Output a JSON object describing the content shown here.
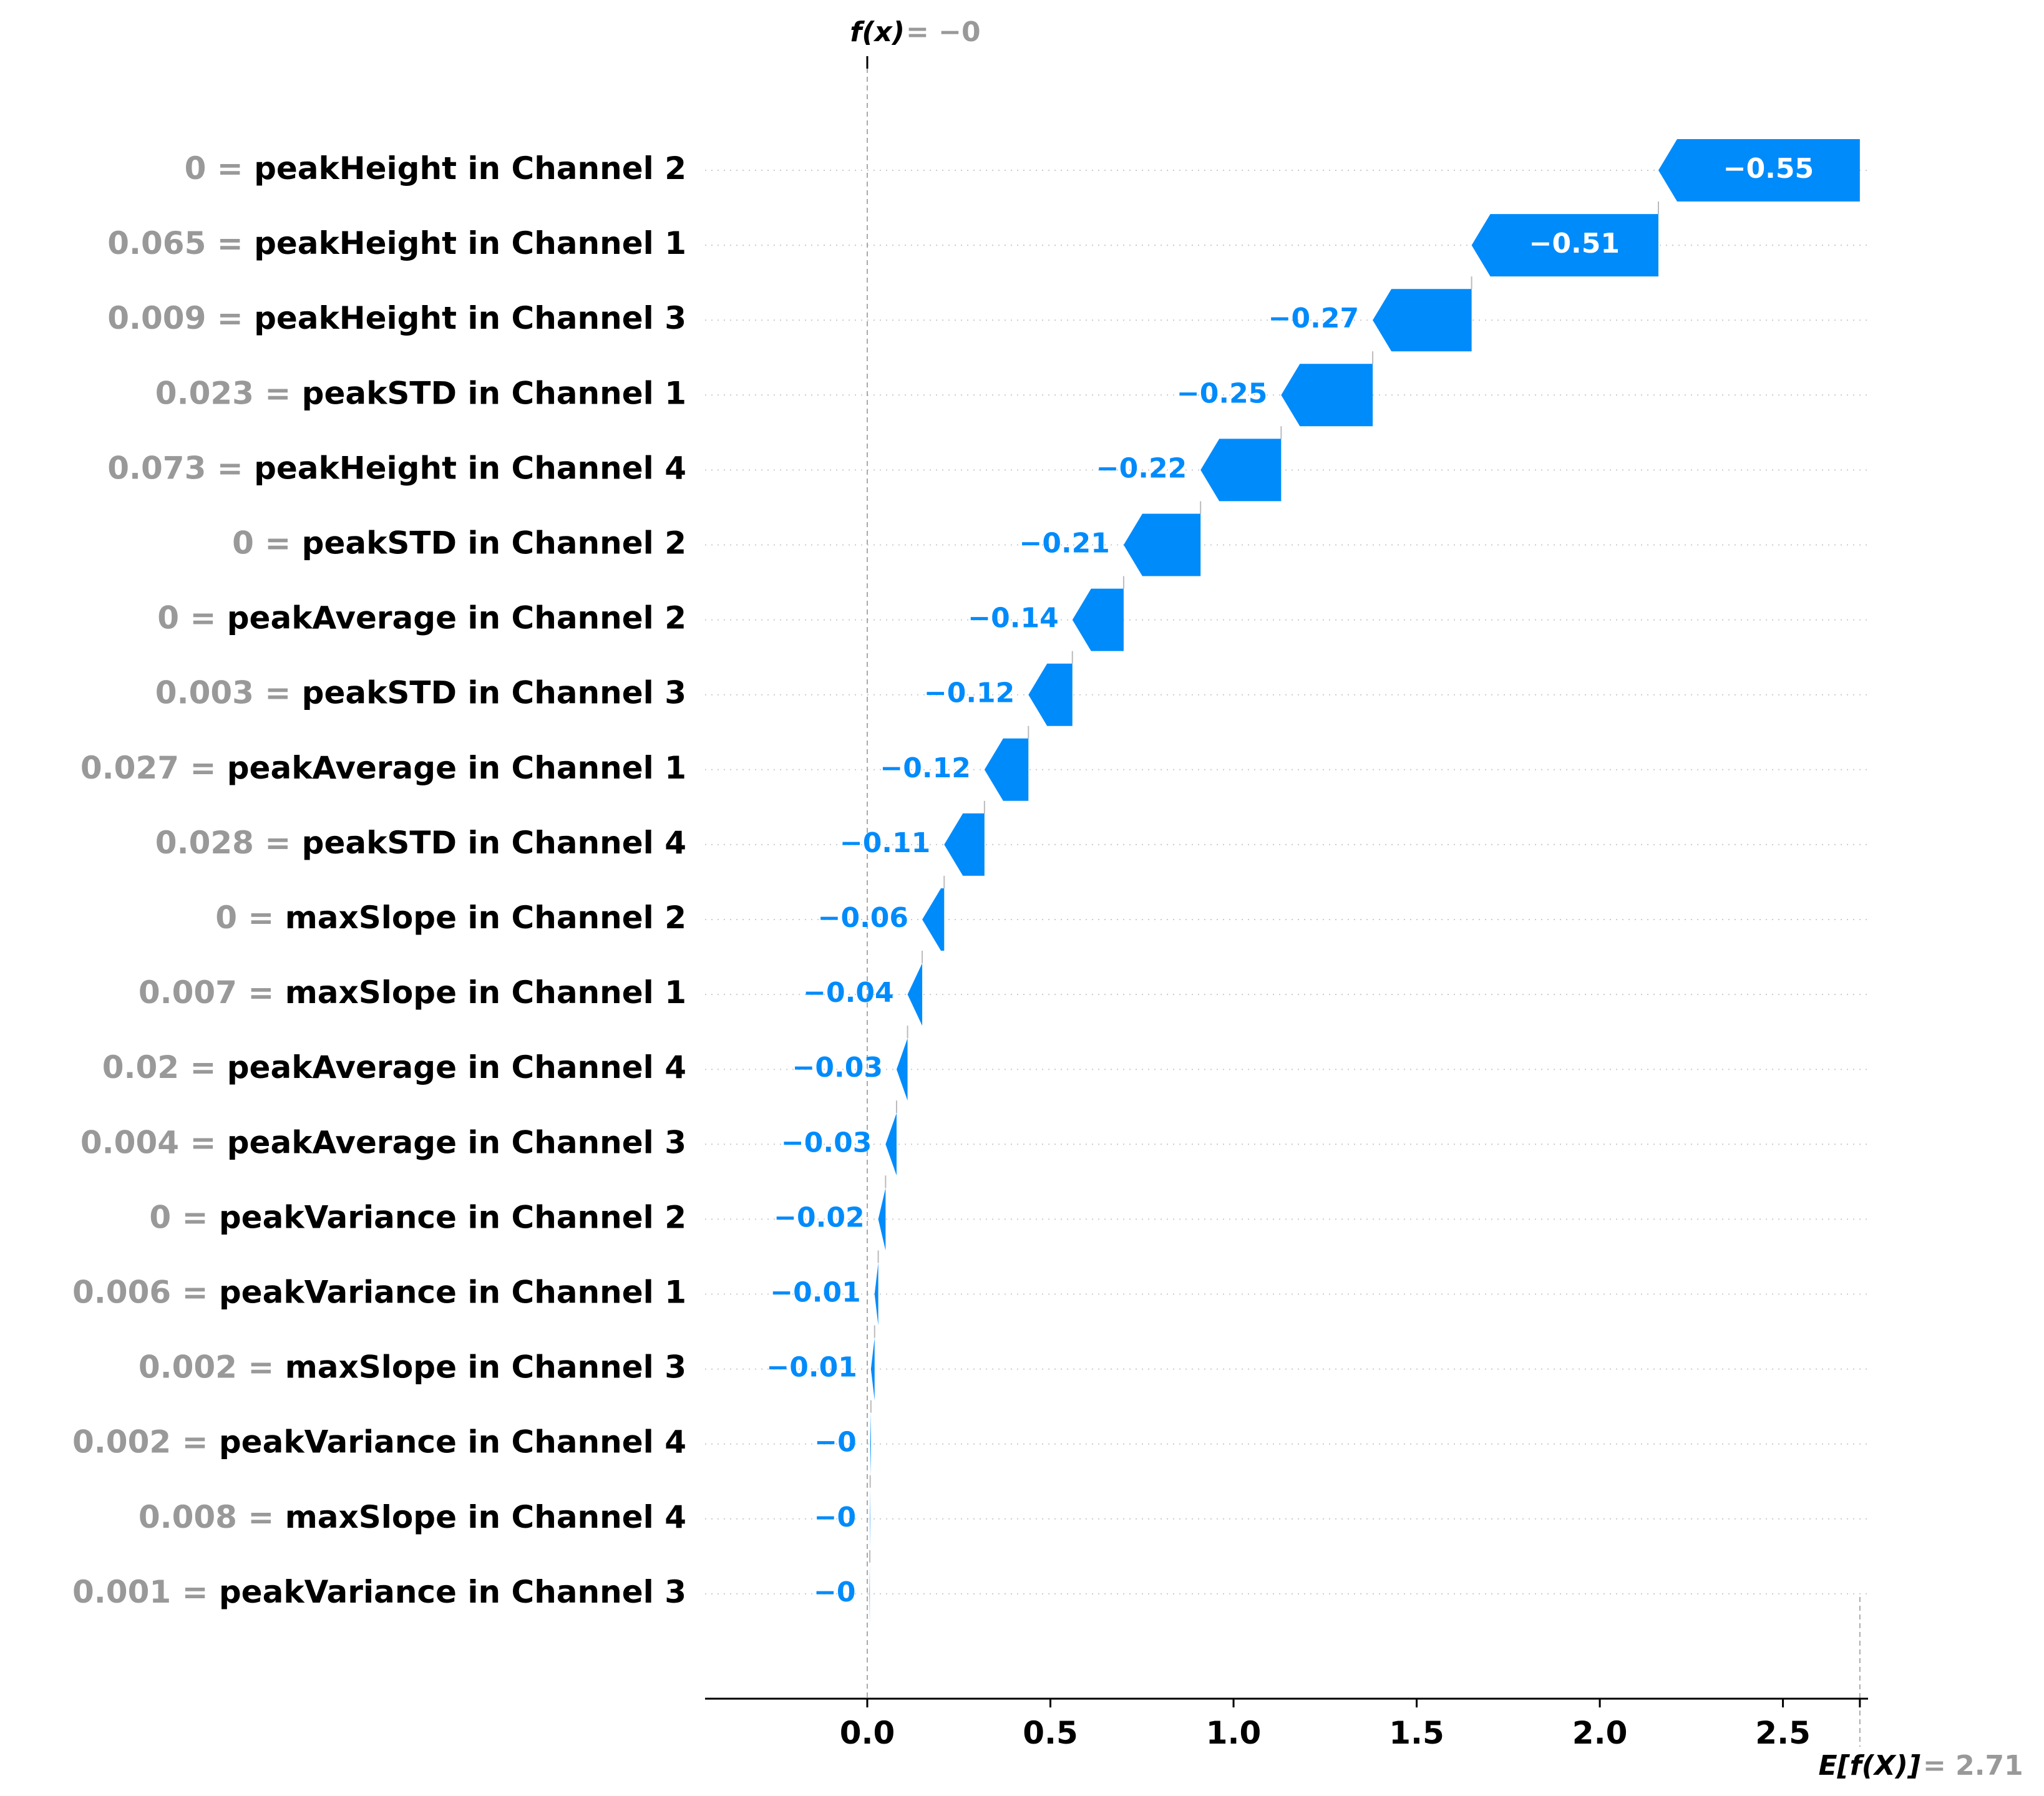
{
  "chart_data": {
    "type": "waterfall",
    "xlim": [
      -0.45,
      2.73
    ],
    "ticks": [
      "0.0",
      "0.5",
      "1.0",
      "1.5",
      "2.0",
      "2.5"
    ],
    "tick_values": [
      0.0,
      0.5,
      1.0,
      1.5,
      2.0,
      2.5
    ],
    "base_value": 2.71,
    "output_value": 0,
    "fx_label": "f(x)",
    "fx_value_text": "= −0",
    "efx_label": "E[f(X)]",
    "efx_value_text": "= 2.71",
    "colors": {
      "negative": "#008bfb",
      "feature_name": "#000000",
      "feature_value": "#999999",
      "gridline": "#cccccc"
    },
    "features": [
      {
        "value": "0",
        "name": "peakHeight in Channel 2",
        "shap": -0.55,
        "label": "−0.55"
      },
      {
        "value": "0.065",
        "name": "peakHeight in Channel 1",
        "shap": -0.51,
        "label": "−0.51"
      },
      {
        "value": "0.009",
        "name": "peakHeight in Channel 3",
        "shap": -0.27,
        "label": "−0.27"
      },
      {
        "value": "0.023",
        "name": "peakSTD in Channel 1",
        "shap": -0.25,
        "label": "−0.25"
      },
      {
        "value": "0.073",
        "name": "peakHeight in Channel 4",
        "shap": -0.22,
        "label": "−0.22"
      },
      {
        "value": "0",
        "name": "peakSTD in Channel 2",
        "shap": -0.21,
        "label": "−0.21"
      },
      {
        "value": "0",
        "name": "peakAverage in Channel 2",
        "shap": -0.14,
        "label": "−0.14"
      },
      {
        "value": "0.003",
        "name": "peakSTD in Channel 3",
        "shap": -0.12,
        "label": "−0.12"
      },
      {
        "value": "0.027",
        "name": "peakAverage in Channel 1",
        "shap": -0.12,
        "label": "−0.12"
      },
      {
        "value": "0.028",
        "name": "peakSTD in Channel 4",
        "shap": -0.11,
        "label": "−0.11"
      },
      {
        "value": "0",
        "name": "maxSlope in Channel 2",
        "shap": -0.06,
        "label": "−0.06"
      },
      {
        "value": "0.007",
        "name": "maxSlope in Channel 1",
        "shap": -0.04,
        "label": "−0.04"
      },
      {
        "value": "0.02",
        "name": "peakAverage in Channel 4",
        "shap": -0.03,
        "label": "−0.03"
      },
      {
        "value": "0.004",
        "name": "peakAverage in Channel 3",
        "shap": -0.03,
        "label": "−0.03"
      },
      {
        "value": "0",
        "name": "peakVariance in Channel 2",
        "shap": -0.02,
        "label": "−0.02"
      },
      {
        "value": "0.006",
        "name": "peakVariance in Channel 1",
        "shap": -0.01,
        "label": "−0.01"
      },
      {
        "value": "0.002",
        "name": "maxSlope in Channel 3",
        "shap": -0.01,
        "label": "−0.01"
      },
      {
        "value": "0.002",
        "name": "peakVariance in Channel 4",
        "shap": -0.002,
        "label": "−0"
      },
      {
        "value": "0.008",
        "name": "maxSlope in Channel 4",
        "shap": -0.001,
        "label": "−0"
      },
      {
        "value": "0.001",
        "name": "peakVariance in Channel 3",
        "shap": -0.001,
        "label": "−0"
      }
    ]
  }
}
